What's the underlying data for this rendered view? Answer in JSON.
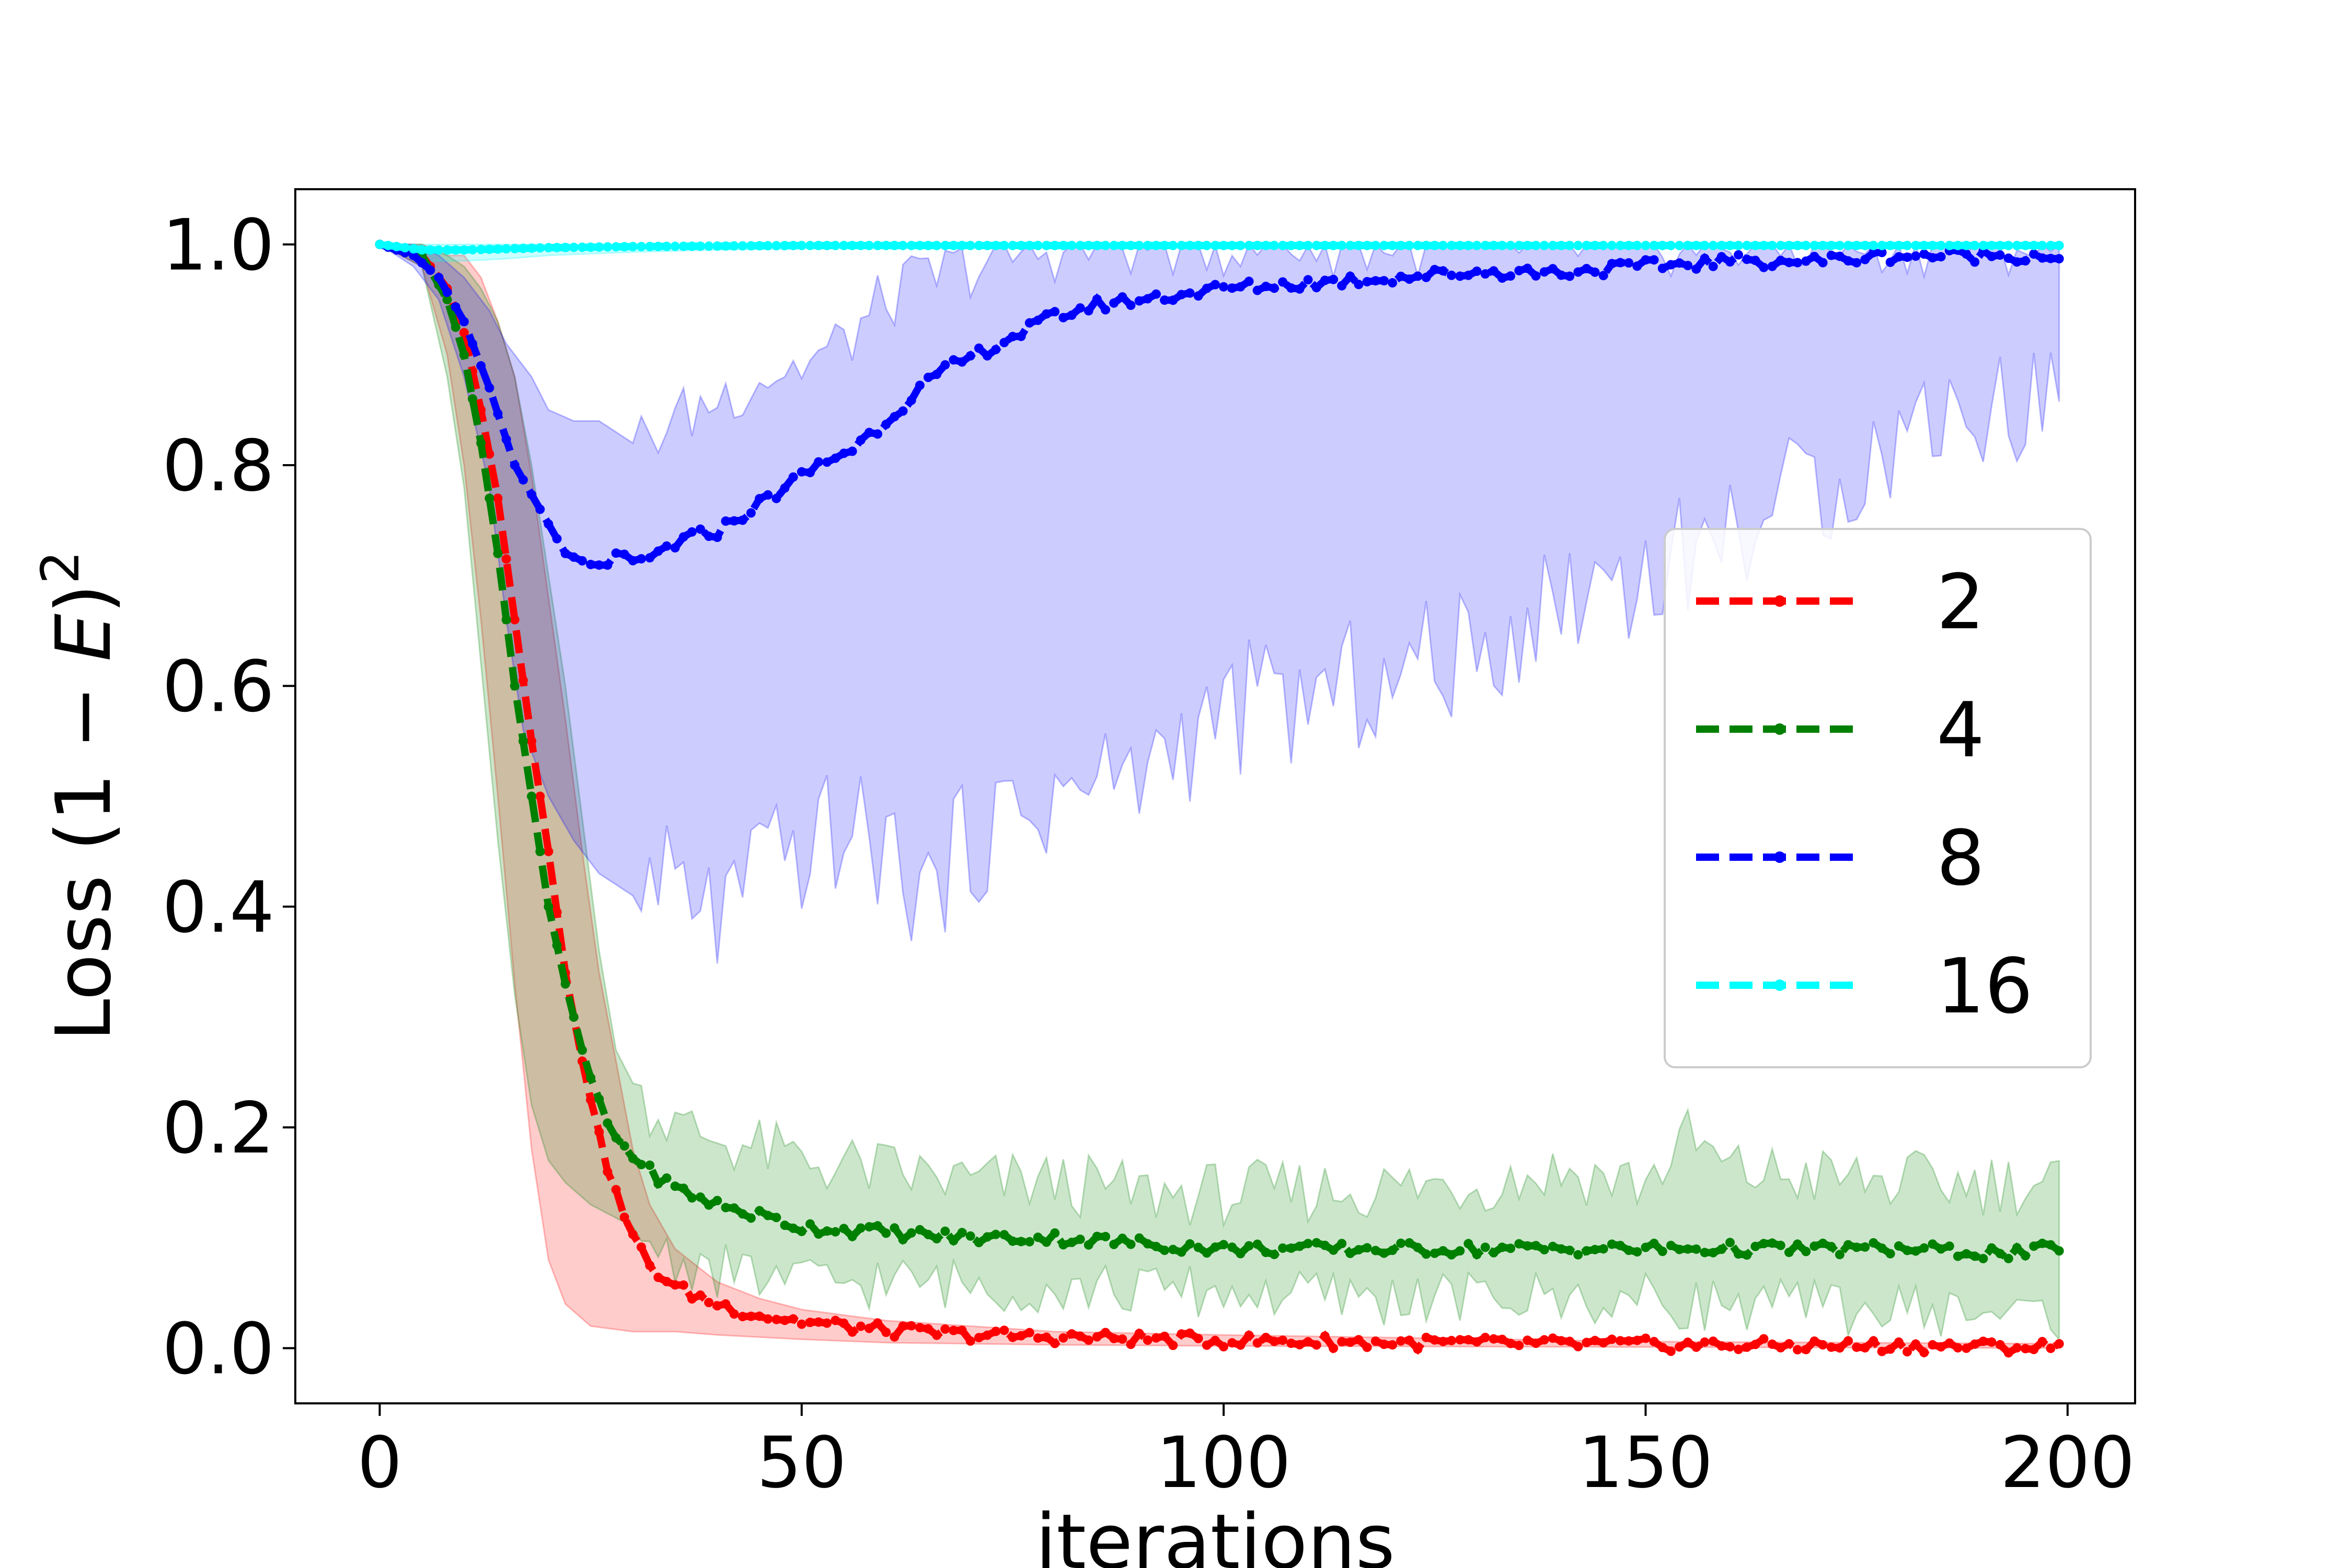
{
  "chart_data": {
    "type": "line",
    "xlabel": "iterations",
    "ylabel": "Loss (1 − E)²",
    "ylabel_parts": {
      "prefix": "Loss (1 − ",
      "var": "E",
      "suffix": ")",
      "sup": "2"
    },
    "xlim": [
      -10,
      208
    ],
    "ylim": [
      -0.05,
      1.05
    ],
    "xticks": [
      0,
      50,
      100,
      150,
      200
    ],
    "xtick_labels": [
      "0",
      "50",
      "100",
      "150",
      "200"
    ],
    "yticks": [
      0.0,
      0.2,
      0.4,
      0.6,
      0.8,
      1.0
    ],
    "ytick_labels": [
      "0.0",
      "0.2",
      "0.4",
      "0.6",
      "0.8",
      "1.0"
    ],
    "legend": {
      "placement": "center-right"
    },
    "series": [
      {
        "name": "2",
        "color": "#ff0000",
        "band_color": "#ff0000",
        "mean": [
          [
            0,
            1.0
          ],
          [
            5,
            0.99
          ],
          [
            8,
            0.96
          ],
          [
            10,
            0.92
          ],
          [
            12,
            0.85
          ],
          [
            14,
            0.77
          ],
          [
            16,
            0.66
          ],
          [
            18,
            0.55
          ],
          [
            20,
            0.45
          ],
          [
            22,
            0.34
          ],
          [
            24,
            0.26
          ],
          [
            26,
            0.19
          ],
          [
            28,
            0.14
          ],
          [
            30,
            0.1
          ],
          [
            32,
            0.075
          ],
          [
            35,
            0.055
          ],
          [
            40,
            0.04
          ],
          [
            45,
            0.03
          ],
          [
            50,
            0.024
          ],
          [
            60,
            0.016
          ],
          [
            70,
            0.012
          ],
          [
            80,
            0.01
          ],
          [
            100,
            0.007
          ],
          [
            120,
            0.005
          ],
          [
            150,
            0.003
          ],
          [
            180,
            0.002
          ],
          [
            200,
            0.001
          ]
        ],
        "lower": [
          [
            0,
            1.0
          ],
          [
            5,
            0.98
          ],
          [
            8,
            0.9
          ],
          [
            10,
            0.8
          ],
          [
            12,
            0.66
          ],
          [
            14,
            0.5
          ],
          [
            16,
            0.33
          ],
          [
            18,
            0.18
          ],
          [
            20,
            0.08
          ],
          [
            22,
            0.04
          ],
          [
            25,
            0.02
          ],
          [
            30,
            0.015
          ],
          [
            35,
            0.015
          ],
          [
            40,
            0.012
          ],
          [
            50,
            0.008
          ],
          [
            60,
            0.005
          ],
          [
            80,
            0.003
          ],
          [
            100,
            0.002
          ],
          [
            150,
            0.001
          ],
          [
            200,
            0.0
          ]
        ],
        "upper": [
          [
            0,
            1.0
          ],
          [
            5,
            1.0
          ],
          [
            8,
            0.99
          ],
          [
            10,
            0.99
          ],
          [
            12,
            0.97
          ],
          [
            14,
            0.93
          ],
          [
            16,
            0.88
          ],
          [
            18,
            0.79
          ],
          [
            20,
            0.68
          ],
          [
            22,
            0.57
          ],
          [
            24,
            0.45
          ],
          [
            26,
            0.34
          ],
          [
            28,
            0.26
          ],
          [
            30,
            0.18
          ],
          [
            32,
            0.13
          ],
          [
            35,
            0.09
          ],
          [
            40,
            0.06
          ],
          [
            45,
            0.045
          ],
          [
            50,
            0.035
          ],
          [
            60,
            0.025
          ],
          [
            80,
            0.015
          ],
          [
            100,
            0.012
          ],
          [
            150,
            0.006
          ],
          [
            200,
            0.004
          ]
        ]
      },
      {
        "name": "4",
        "color": "#008000",
        "band_color": "#008000",
        "mean": [
          [
            0,
            1.0
          ],
          [
            5,
            0.99
          ],
          [
            8,
            0.95
          ],
          [
            10,
            0.9
          ],
          [
            12,
            0.82
          ],
          [
            14,
            0.72
          ],
          [
            16,
            0.6
          ],
          [
            18,
            0.5
          ],
          [
            20,
            0.4
          ],
          [
            22,
            0.33
          ],
          [
            24,
            0.27
          ],
          [
            26,
            0.22
          ],
          [
            28,
            0.19
          ],
          [
            30,
            0.175
          ],
          [
            32,
            0.16
          ],
          [
            35,
            0.145
          ],
          [
            40,
            0.13
          ],
          [
            45,
            0.12
          ],
          [
            50,
            0.11
          ],
          [
            60,
            0.105
          ],
          [
            70,
            0.1
          ],
          [
            80,
            0.1
          ],
          [
            90,
            0.095
          ],
          [
            100,
            0.09
          ],
          [
            120,
            0.09
          ],
          [
            140,
            0.09
          ],
          [
            160,
            0.09
          ],
          [
            180,
            0.09
          ],
          [
            195,
            0.085
          ],
          [
            200,
            0.095
          ]
        ],
        "lower": [
          [
            0,
            1.0
          ],
          [
            5,
            0.98
          ],
          [
            8,
            0.88
          ],
          [
            10,
            0.78
          ],
          [
            12,
            0.62
          ],
          [
            14,
            0.46
          ],
          [
            16,
            0.32
          ],
          [
            18,
            0.22
          ],
          [
            20,
            0.17
          ],
          [
            22,
            0.15
          ],
          [
            25,
            0.13
          ],
          [
            30,
            0.11
          ],
          [
            35,
            0.08
          ],
          [
            40,
            0.07
          ],
          [
            50,
            0.06
          ],
          [
            60,
            0.06
          ],
          [
            80,
            0.055
          ],
          [
            100,
            0.05
          ],
          [
            120,
            0.045
          ],
          [
            140,
            0.045
          ],
          [
            160,
            0.04
          ],
          [
            180,
            0.035
          ],
          [
            200,
            0.03
          ]
        ],
        "upper": [
          [
            0,
            1.0
          ],
          [
            5,
            1.0
          ],
          [
            8,
            0.99
          ],
          [
            10,
            0.98
          ],
          [
            12,
            0.96
          ],
          [
            14,
            0.93
          ],
          [
            16,
            0.88
          ],
          [
            18,
            0.8
          ],
          [
            20,
            0.7
          ],
          [
            22,
            0.6
          ],
          [
            24,
            0.48
          ],
          [
            26,
            0.36
          ],
          [
            28,
            0.27
          ],
          [
            30,
            0.24
          ],
          [
            32,
            0.22
          ],
          [
            35,
            0.2
          ],
          [
            40,
            0.19
          ],
          [
            50,
            0.17
          ],
          [
            60,
            0.16
          ],
          [
            70,
            0.15
          ],
          [
            80,
            0.15
          ],
          [
            90,
            0.14
          ],
          [
            100,
            0.14
          ],
          [
            120,
            0.145
          ],
          [
            130,
            0.15
          ],
          [
            140,
            0.16
          ],
          [
            150,
            0.15
          ],
          [
            155,
            0.19
          ],
          [
            160,
            0.16
          ],
          [
            180,
            0.15
          ],
          [
            200,
            0.15
          ]
        ]
      },
      {
        "name": "8",
        "color": "#0000ff",
        "band_color": "#0000ff",
        "mean": [
          [
            0,
            1.0
          ],
          [
            4,
            0.99
          ],
          [
            7,
            0.97
          ],
          [
            10,
            0.93
          ],
          [
            13,
            0.87
          ],
          [
            16,
            0.8
          ],
          [
            19,
            0.76
          ],
          [
            22,
            0.72
          ],
          [
            25,
            0.71
          ],
          [
            28,
            0.715
          ],
          [
            31,
            0.71
          ],
          [
            34,
            0.725
          ],
          [
            37,
            0.735
          ],
          [
            40,
            0.74
          ],
          [
            44,
            0.76
          ],
          [
            48,
            0.78
          ],
          [
            52,
            0.8
          ],
          [
            56,
            0.815
          ],
          [
            60,
            0.84
          ],
          [
            64,
            0.87
          ],
          [
            68,
            0.89
          ],
          [
            72,
            0.905
          ],
          [
            76,
            0.92
          ],
          [
            80,
            0.935
          ],
          [
            85,
            0.945
          ],
          [
            90,
            0.95
          ],
          [
            95,
            0.955
          ],
          [
            100,
            0.96
          ],
          [
            110,
            0.965
          ],
          [
            120,
            0.97
          ],
          [
            130,
            0.975
          ],
          [
            140,
            0.975
          ],
          [
            150,
            0.98
          ],
          [
            160,
            0.985
          ],
          [
            170,
            0.985
          ],
          [
            180,
            0.99
          ],
          [
            190,
            0.99
          ],
          [
            200,
            0.99
          ]
        ],
        "lower": [
          [
            0,
            1.0
          ],
          [
            4,
            0.98
          ],
          [
            7,
            0.95
          ],
          [
            10,
            0.88
          ],
          [
            13,
            0.78
          ],
          [
            15,
            0.66
          ],
          [
            17,
            0.56
          ],
          [
            20,
            0.5
          ],
          [
            23,
            0.46
          ],
          [
            26,
            0.43
          ],
          [
            30,
            0.41
          ],
          [
            35,
            0.42
          ],
          [
            38,
            0.4
          ],
          [
            40,
            0.39
          ],
          [
            45,
            0.43
          ],
          [
            50,
            0.45
          ],
          [
            55,
            0.47
          ],
          [
            60,
            0.45
          ],
          [
            65,
            0.41
          ],
          [
            70,
            0.46
          ],
          [
            75,
            0.48
          ],
          [
            80,
            0.5
          ],
          [
            85,
            0.51
          ],
          [
            90,
            0.52
          ],
          [
            95,
            0.55
          ],
          [
            100,
            0.57
          ],
          [
            105,
            0.59
          ],
          [
            110,
            0.58
          ],
          [
            115,
            0.6
          ],
          [
            120,
            0.6
          ],
          [
            125,
            0.63
          ],
          [
            130,
            0.62
          ],
          [
            135,
            0.66
          ],
          [
            140,
            0.68
          ],
          [
            145,
            0.7
          ],
          [
            150,
            0.7
          ],
          [
            155,
            0.72
          ],
          [
            160,
            0.74
          ],
          [
            165,
            0.76
          ],
          [
            170,
            0.78
          ],
          [
            175,
            0.8
          ],
          [
            180,
            0.82
          ],
          [
            185,
            0.86
          ],
          [
            190,
            0.84
          ],
          [
            195,
            0.86
          ],
          [
            200,
            0.88
          ]
        ],
        "upper": [
          [
            0,
            1.0
          ],
          [
            4,
            1.0
          ],
          [
            7,
            0.99
          ],
          [
            10,
            0.97
          ],
          [
            13,
            0.94
          ],
          [
            15,
            0.91
          ],
          [
            18,
            0.88
          ],
          [
            20,
            0.85
          ],
          [
            23,
            0.84
          ],
          [
            26,
            0.84
          ],
          [
            30,
            0.82
          ],
          [
            35,
            0.84
          ],
          [
            40,
            0.86
          ],
          [
            45,
            0.88
          ],
          [
            50,
            0.89
          ],
          [
            55,
            0.91
          ],
          [
            60,
            0.95
          ],
          [
            65,
            0.97
          ],
          [
            70,
            0.98
          ],
          [
            75,
            0.99
          ],
          [
            80,
            0.995
          ],
          [
            90,
            1.0
          ],
          [
            200,
            1.0
          ]
        ]
      },
      {
        "name": "16",
        "color": "#00ffff",
        "band_color": "#00ffff",
        "mean": [
          [
            0,
            1.0
          ],
          [
            5,
            0.995
          ],
          [
            10,
            0.995
          ],
          [
            15,
            0.996
          ],
          [
            20,
            0.997
          ],
          [
            30,
            0.998
          ],
          [
            50,
            0.999
          ],
          [
            100,
            0.999
          ],
          [
            150,
            0.999
          ],
          [
            200,
            0.999
          ]
        ],
        "lower": [
          [
            0,
            1.0
          ],
          [
            5,
            0.985
          ],
          [
            10,
            0.985
          ],
          [
            15,
            0.987
          ],
          [
            20,
            0.99
          ],
          [
            30,
            0.993
          ],
          [
            40,
            0.995
          ],
          [
            50,
            0.996
          ],
          [
            100,
            0.997
          ],
          [
            200,
            0.998
          ]
        ],
        "upper": [
          [
            0,
            1.0
          ],
          [
            200,
            1.0
          ]
        ]
      }
    ]
  }
}
